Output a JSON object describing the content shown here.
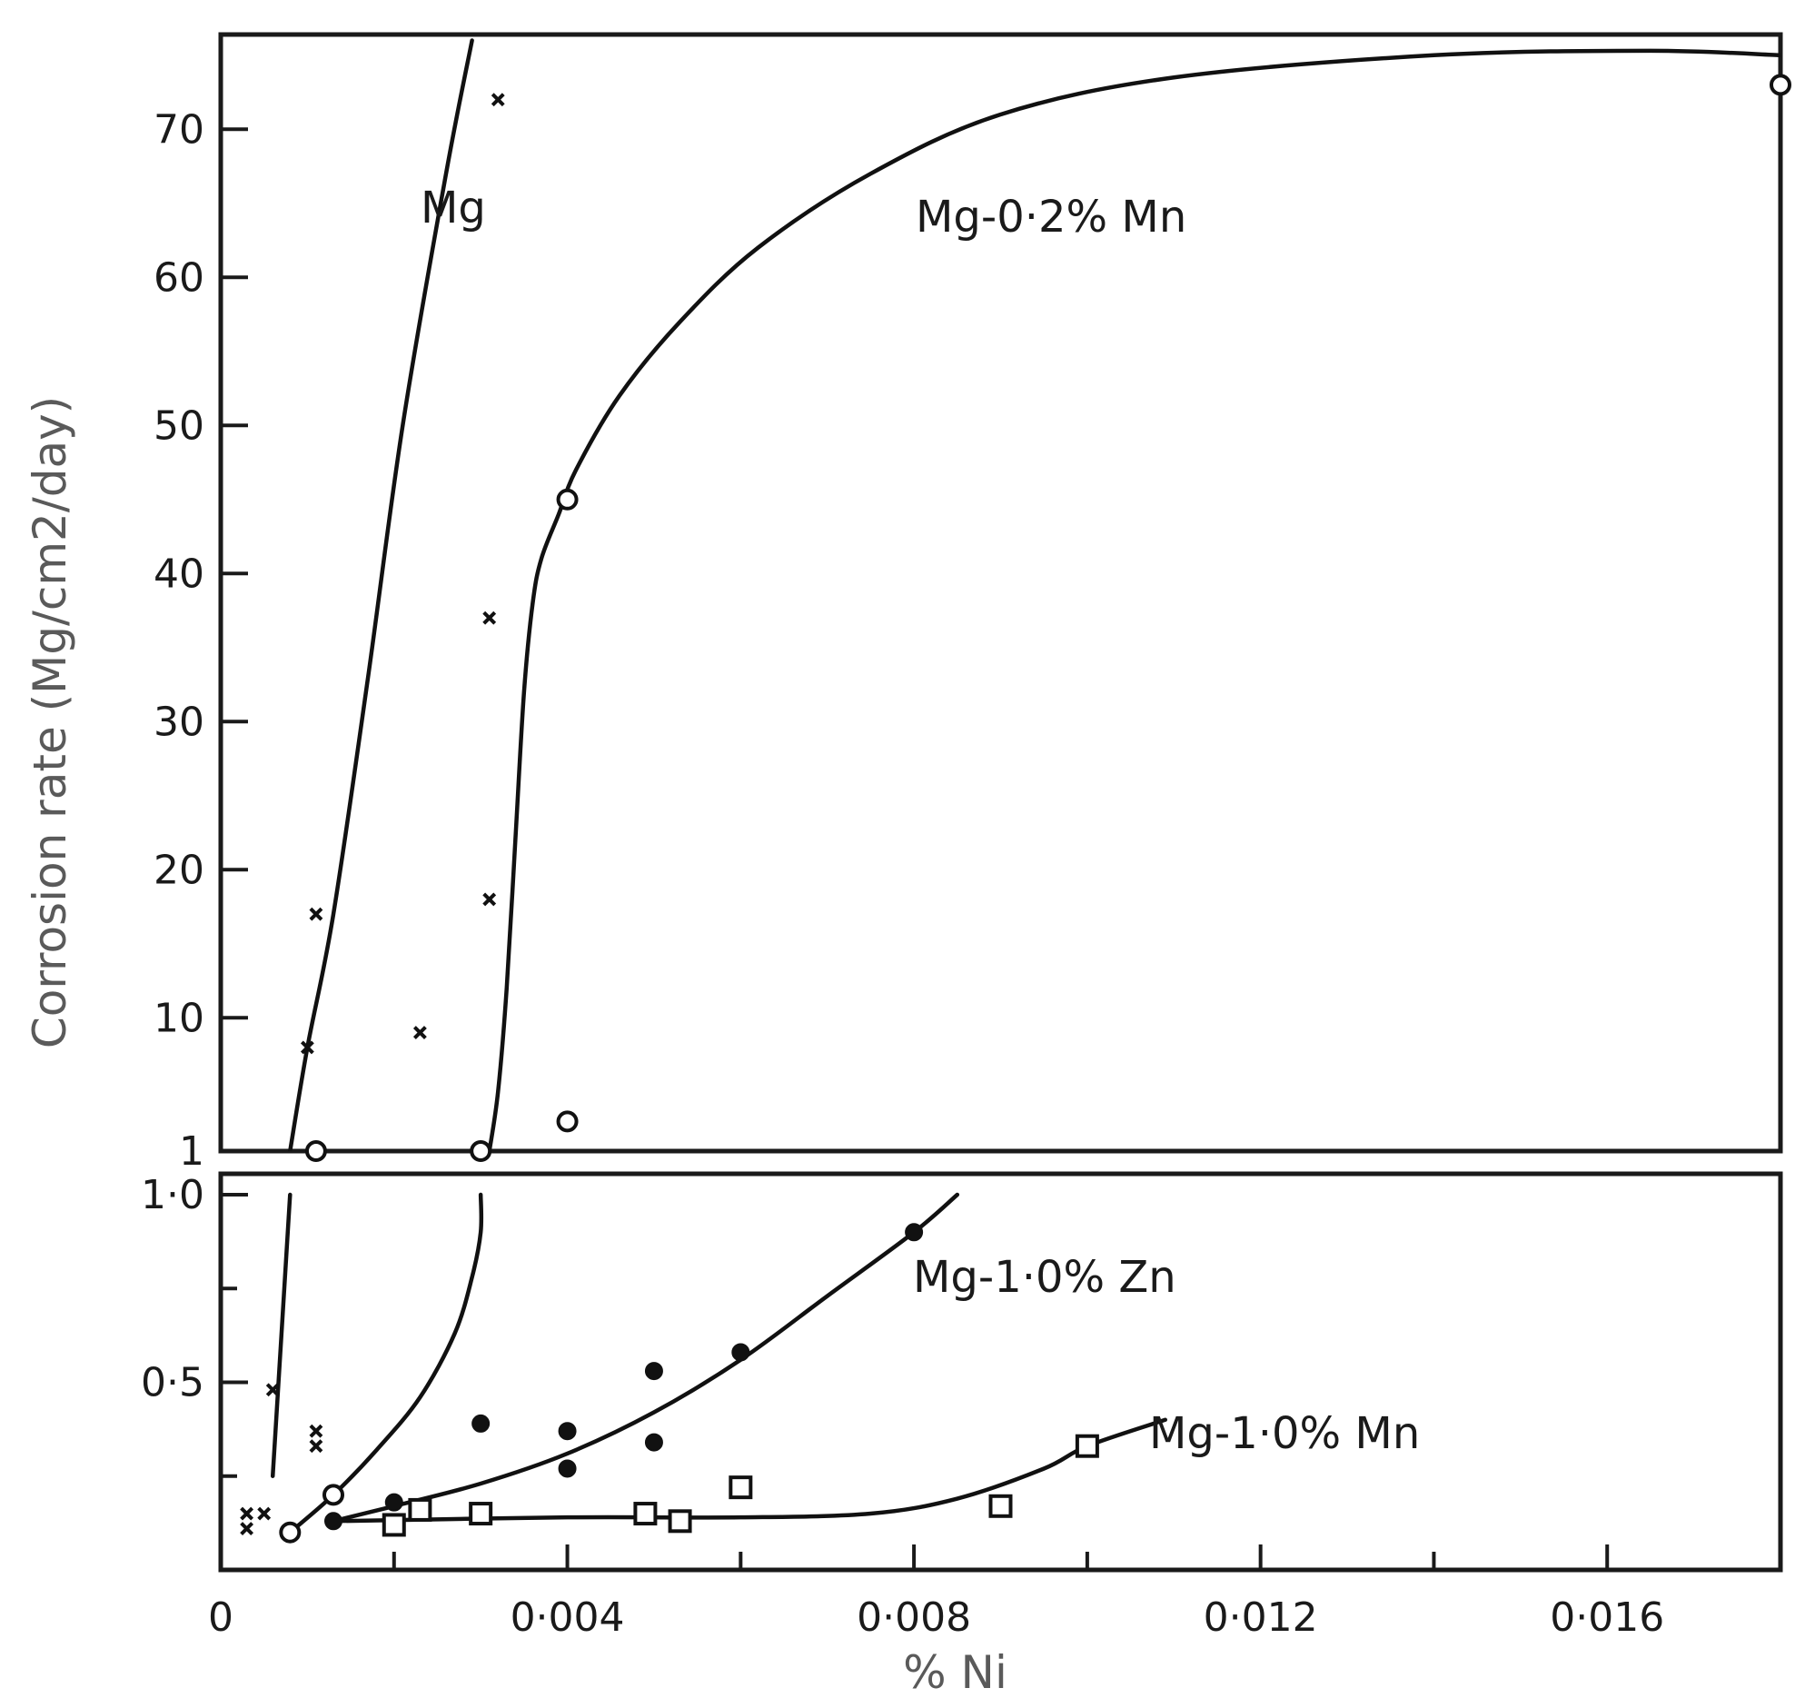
{
  "chart_data": {
    "type": "scatter",
    "xlabel": "% Ni",
    "ylabel": "Corrosion rate (Mg/cm2/day)",
    "xlim": [
      0,
      0.018
    ],
    "x_ticks": [
      0,
      0.004,
      0.008,
      0.012,
      0.016
    ],
    "x_tick_labels": [
      "0",
      "0·004",
      "0·008",
      "0·012",
      "0·016"
    ],
    "panels": [
      {
        "name": "upper",
        "ylim": [
          1,
          76
        ],
        "y_ticks": [
          1,
          10,
          20,
          30,
          40,
          50,
          60,
          70
        ],
        "y_tick_labels": [
          "1",
          "10",
          "20",
          "30",
          "40",
          "50",
          "60",
          "70"
        ]
      },
      {
        "name": "lower",
        "ylim": [
          0,
          1.0
        ],
        "y_ticks": [
          0.5,
          1.0
        ],
        "y_tick_labels": [
          "0·5",
          "1·0"
        ]
      }
    ],
    "series": [
      {
        "name": "Mg",
        "marker": "cross",
        "points": [
          {
            "panel": "lower",
            "x": 0.0006,
            "y": 0.48
          },
          {
            "panel": "lower",
            "x": 0.0003,
            "y": 0.15
          },
          {
            "panel": "lower",
            "x": 0.0005,
            "y": 0.15
          },
          {
            "panel": "lower",
            "x": 0.0003,
            "y": 0.11
          },
          {
            "panel": "lower",
            "x": 0.0011,
            "y": 0.37
          },
          {
            "panel": "lower",
            "x": 0.0011,
            "y": 0.33
          },
          {
            "panel": "upper",
            "x": 0.001,
            "y": 8
          },
          {
            "panel": "upper",
            "x": 0.0011,
            "y": 17
          },
          {
            "panel": "upper",
            "x": 0.0023,
            "y": 9
          },
          {
            "panel": "upper",
            "x": 0.0031,
            "y": 18
          },
          {
            "panel": "upper",
            "x": 0.0031,
            "y": 37
          },
          {
            "panel": "upper",
            "x": 0.0032,
            "y": 72
          }
        ],
        "curve": [
          {
            "panel": "lower",
            "x": 0.0006,
            "y": 0.25
          },
          {
            "panel": "lower",
            "x": 0.0008,
            "y": 1.0
          },
          {
            "panel": "upper",
            "x": 0.0008,
            "y": 1
          },
          {
            "panel": "upper",
            "x": 0.001,
            "y": 8
          },
          {
            "panel": "upper",
            "x": 0.0013,
            "y": 17
          },
          {
            "panel": "upper",
            "x": 0.0017,
            "y": 33
          },
          {
            "panel": "upper",
            "x": 0.0021,
            "y": 50
          },
          {
            "panel": "upper",
            "x": 0.0026,
            "y": 67
          },
          {
            "panel": "upper",
            "x": 0.0029,
            "y": 76
          }
        ]
      },
      {
        "name": "Mg-0·2% Mn",
        "marker": "open-circle",
        "points": [
          {
            "panel": "lower",
            "x": 0.0008,
            "y": 0.1
          },
          {
            "panel": "lower",
            "x": 0.0013,
            "y": 0.2
          },
          {
            "panel": "upper",
            "x": 0.0011,
            "y": 1
          },
          {
            "panel": "upper",
            "x": 0.003,
            "y": 1
          },
          {
            "panel": "upper",
            "x": 0.004,
            "y": 3
          },
          {
            "panel": "upper",
            "x": 0.004,
            "y": 45
          },
          {
            "panel": "upper",
            "x": 0.018,
            "y": 73
          }
        ],
        "curve": [
          {
            "panel": "lower",
            "x": 0.0008,
            "y": 0.1
          },
          {
            "panel": "lower",
            "x": 0.0013,
            "y": 0.2
          },
          {
            "panel": "lower",
            "x": 0.0018,
            "y": 0.32
          },
          {
            "panel": "lower",
            "x": 0.0023,
            "y": 0.46
          },
          {
            "panel": "lower",
            "x": 0.0027,
            "y": 0.63
          },
          {
            "panel": "lower",
            "x": 0.0029,
            "y": 0.78
          },
          {
            "panel": "lower",
            "x": 0.003,
            "y": 0.9
          },
          {
            "panel": "lower",
            "x": 0.003,
            "y": 1.0
          },
          {
            "panel": "upper",
            "x": 0.0031,
            "y": 1
          },
          {
            "panel": "upper",
            "x": 0.0032,
            "y": 5
          },
          {
            "panel": "upper",
            "x": 0.0033,
            "y": 12
          },
          {
            "panel": "upper",
            "x": 0.0034,
            "y": 22
          },
          {
            "panel": "upper",
            "x": 0.0035,
            "y": 32
          },
          {
            "panel": "upper",
            "x": 0.0036,
            "y": 38
          },
          {
            "panel": "upper",
            "x": 0.0037,
            "y": 41
          },
          {
            "panel": "upper",
            "x": 0.0039,
            "y": 44
          },
          {
            "panel": "upper",
            "x": 0.0041,
            "y": 47
          },
          {
            "panel": "upper",
            "x": 0.0046,
            "y": 52
          },
          {
            "panel": "upper",
            "x": 0.0053,
            "y": 57
          },
          {
            "panel": "upper",
            "x": 0.0062,
            "y": 62
          },
          {
            "panel": "upper",
            "x": 0.0075,
            "y": 67
          },
          {
            "panel": "upper",
            "x": 0.009,
            "y": 71
          },
          {
            "panel": "upper",
            "x": 0.011,
            "y": 73.5
          },
          {
            "panel": "upper",
            "x": 0.014,
            "y": 75
          },
          {
            "panel": "upper",
            "x": 0.0165,
            "y": 75.3
          },
          {
            "panel": "upper",
            "x": 0.018,
            "y": 75
          }
        ]
      },
      {
        "name": "Mg-1·0% Zn",
        "marker": "filled-circle",
        "points": [
          {
            "panel": "lower",
            "x": 0.0013,
            "y": 0.13
          },
          {
            "panel": "lower",
            "x": 0.002,
            "y": 0.18
          },
          {
            "panel": "lower",
            "x": 0.003,
            "y": 0.39
          },
          {
            "panel": "lower",
            "x": 0.004,
            "y": 0.37
          },
          {
            "panel": "lower",
            "x": 0.004,
            "y": 0.27
          },
          {
            "panel": "lower",
            "x": 0.005,
            "y": 0.53
          },
          {
            "panel": "lower",
            "x": 0.005,
            "y": 0.34
          },
          {
            "panel": "lower",
            "x": 0.006,
            "y": 0.58
          },
          {
            "panel": "lower",
            "x": 0.008,
            "y": 0.9
          }
        ],
        "curve": [
          {
            "panel": "lower",
            "x": 0.0013,
            "y": 0.13
          },
          {
            "panel": "lower",
            "x": 0.002,
            "y": 0.17
          },
          {
            "panel": "lower",
            "x": 0.003,
            "y": 0.23
          },
          {
            "panel": "lower",
            "x": 0.004,
            "y": 0.31
          },
          {
            "panel": "lower",
            "x": 0.005,
            "y": 0.42
          },
          {
            "panel": "lower",
            "x": 0.006,
            "y": 0.56
          },
          {
            "panel": "lower",
            "x": 0.007,
            "y": 0.73
          },
          {
            "panel": "lower",
            "x": 0.008,
            "y": 0.9
          },
          {
            "panel": "lower",
            "x": 0.0085,
            "y": 1.0
          }
        ]
      },
      {
        "name": "Mg-1·0% Mn",
        "marker": "open-square",
        "points": [
          {
            "panel": "lower",
            "x": 0.002,
            "y": 0.12
          },
          {
            "panel": "lower",
            "x": 0.0023,
            "y": 0.16
          },
          {
            "panel": "lower",
            "x": 0.003,
            "y": 0.15
          },
          {
            "panel": "lower",
            "x": 0.0049,
            "y": 0.15
          },
          {
            "panel": "lower",
            "x": 0.0053,
            "y": 0.13
          },
          {
            "panel": "lower",
            "x": 0.006,
            "y": 0.22
          },
          {
            "panel": "lower",
            "x": 0.009,
            "y": 0.17
          },
          {
            "panel": "lower",
            "x": 0.01,
            "y": 0.33
          }
        ],
        "curve": [
          {
            "panel": "lower",
            "x": 0.0013,
            "y": 0.13
          },
          {
            "panel": "lower",
            "x": 0.004,
            "y": 0.14
          },
          {
            "panel": "lower",
            "x": 0.006,
            "y": 0.14
          },
          {
            "panel": "lower",
            "x": 0.0075,
            "y": 0.15
          },
          {
            "panel": "lower",
            "x": 0.0085,
            "y": 0.19
          },
          {
            "panel": "lower",
            "x": 0.0095,
            "y": 0.27
          },
          {
            "panel": "lower",
            "x": 0.01,
            "y": 0.33
          },
          {
            "panel": "lower",
            "x": 0.0109,
            "y": 0.4
          }
        ]
      }
    ],
    "grid": false,
    "legend": "none"
  }
}
